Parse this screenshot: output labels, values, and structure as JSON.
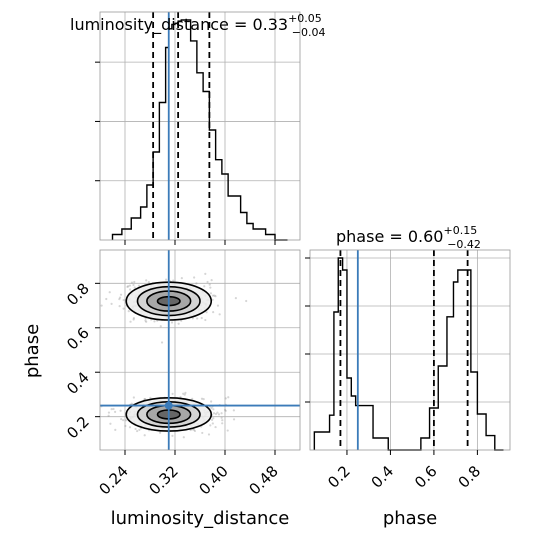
{
  "chart_data": {
    "type": "corner",
    "parameters": [
      "luminosity_distance",
      "phase"
    ],
    "truth": {
      "luminosity_distance": 0.31,
      "phase": 0.25
    },
    "marginals": [
      {
        "parameter": "luminosity_distance",
        "title": {
          "prefix": "luminosity_distance = 0.33",
          "upper": "+0.05",
          "lower": "−0.04"
        },
        "quantiles": [
          0.285,
          0.325,
          0.375
        ],
        "xlim": [
          0.2,
          0.52
        ],
        "bin_edges": [
          0.22,
          0.235,
          0.25,
          0.265,
          0.275,
          0.285,
          0.295,
          0.305,
          0.31,
          0.315,
          0.32,
          0.325,
          0.33,
          0.335,
          0.34,
          0.345,
          0.355,
          0.365,
          0.375,
          0.385,
          0.395,
          0.405,
          0.415,
          0.425,
          0.435,
          0.445,
          0.455,
          0.465,
          0.48,
          0.5
        ],
        "counts": [
          5,
          10,
          20,
          30,
          50,
          80,
          125,
          175,
          192,
          196,
          197,
          199,
          200,
          200,
          200,
          181,
          152,
          135,
          100,
          73,
          60,
          40,
          40,
          25,
          15,
          10,
          10,
          5,
          0
        ]
      },
      {
        "parameter": "phase",
        "title": {
          "prefix": "phase = 0.60",
          "upper": "+0.15",
          "lower": "−0.42"
        },
        "quantiles": [
          0.17,
          0.6,
          0.755
        ],
        "xlim": [
          0.03,
          0.95
        ],
        "bin_edges": [
          0.05,
          0.12,
          0.14,
          0.16,
          0.18,
          0.2,
          0.22,
          0.24,
          0.27,
          0.32,
          0.39,
          0.54,
          0.58,
          0.62,
          0.66,
          0.69,
          0.71,
          0.73,
          0.75,
          0.77,
          0.8,
          0.84,
          0.88,
          0.92
        ],
        "counts": [
          15,
          29,
          115,
          160,
          150,
          60,
          45,
          37,
          37,
          10,
          0,
          10,
          35,
          70,
          111,
          140,
          150,
          150,
          150,
          65,
          30,
          12,
          0
        ]
      }
    ],
    "joint": {
      "x": "luminosity_distance",
      "y": "phase",
      "xlim": [
        0.2,
        0.52
      ],
      "ylim": [
        0.05,
        0.95
      ],
      "modes": [
        {
          "cx": 0.31,
          "cy": 0.72,
          "contour_radii_x": [
            0.018,
            0.035,
            0.05,
            0.068
          ],
          "contour_radii_y": [
            0.02,
            0.045,
            0.065,
            0.085
          ]
        },
        {
          "cx": 0.31,
          "cy": 0.21,
          "contour_radii_x": [
            0.018,
            0.035,
            0.05,
            0.068
          ],
          "contour_radii_y": [
            0.02,
            0.04,
            0.057,
            0.075
          ]
        }
      ]
    },
    "axes": {
      "x_label_left": "luminosity_distance",
      "x_label_right": "phase",
      "y_label_left": "phase",
      "ld_ticks": [
        "0.24",
        "0.32",
        "0.40",
        "0.48"
      ],
      "phase_ticks": [
        "0.2",
        "0.4",
        "0.6",
        "0.8"
      ]
    },
    "colors": {
      "truth": "#3b7bb9",
      "hist": "#000000",
      "grid": "#b0b0b0",
      "scatter": "#8a8a8a"
    },
    "grid": true
  }
}
